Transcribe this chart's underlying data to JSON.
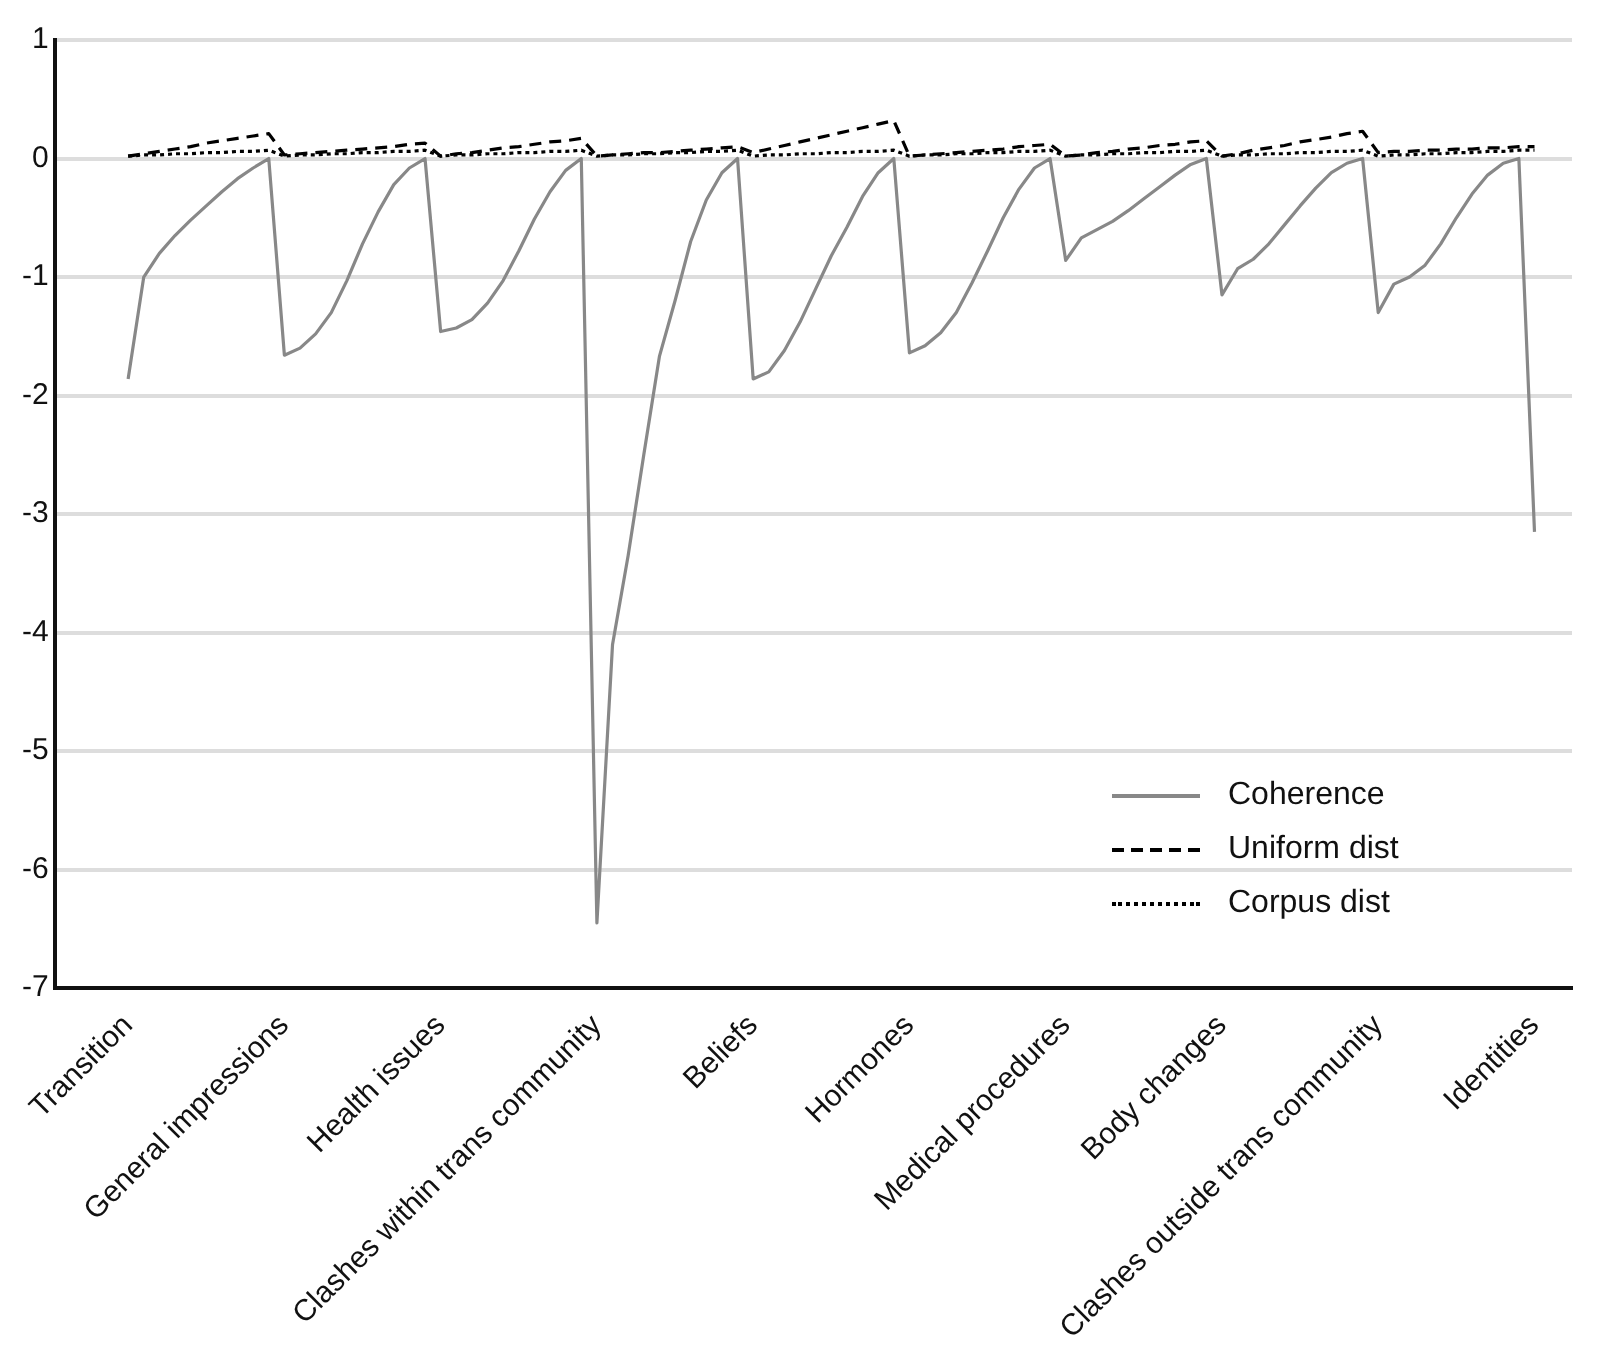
{
  "chart_data": {
    "type": "line",
    "categories": [
      "Transition",
      null,
      null,
      null,
      null,
      null,
      null,
      null,
      null,
      null,
      "General impressions",
      null,
      null,
      null,
      null,
      null,
      null,
      null,
      null,
      null,
      "Health issues",
      null,
      null,
      null,
      null,
      null,
      null,
      null,
      null,
      null,
      "Clashes within trans community",
      null,
      null,
      null,
      null,
      null,
      null,
      null,
      null,
      null,
      "Beliefs",
      null,
      null,
      null,
      null,
      null,
      null,
      null,
      null,
      null,
      "Hormones",
      null,
      null,
      null,
      null,
      null,
      null,
      null,
      null,
      null,
      "Medical procedures",
      null,
      null,
      null,
      null,
      null,
      null,
      null,
      null,
      null,
      "Body changes",
      null,
      null,
      null,
      null,
      null,
      null,
      null,
      null,
      null,
      "Clashes outside trans community",
      null,
      null,
      null,
      null,
      null,
      null,
      null,
      null,
      null,
      "Identities"
    ],
    "ylim": [
      -7,
      1
    ],
    "yticks": [
      -7,
      -6,
      -5,
      -4,
      -3,
      -2,
      -1,
      0,
      1
    ],
    "grid": "y",
    "legend": "bottom right",
    "marker": "none",
    "series": [
      {
        "name": "Coherence",
        "color": "#888888",
        "line_style": "solid",
        "values": [
          -1.86,
          -1.0,
          -0.8,
          -0.65,
          -0.52,
          -0.4,
          -0.28,
          -0.17,
          -0.08,
          0,
          -1.66,
          -1.6,
          -1.48,
          -1.3,
          -1.03,
          -0.72,
          -0.45,
          -0.22,
          -0.08,
          0,
          -1.46,
          -1.43,
          -1.36,
          -1.22,
          -1.03,
          -0.78,
          -0.51,
          -0.28,
          -0.1,
          0,
          -6.45,
          -4.1,
          -3.35,
          -2.5,
          -1.67,
          -1.2,
          -0.7,
          -0.35,
          -0.12,
          0,
          -1.86,
          -1.8,
          -1.62,
          -1.38,
          -1.1,
          -0.82,
          -0.58,
          -0.32,
          -0.12,
          0,
          -1.64,
          -1.58,
          -1.47,
          -1.3,
          -1.05,
          -0.78,
          -0.5,
          -0.26,
          -0.08,
          0,
          -0.86,
          -0.67,
          -0.6,
          -0.53,
          -0.44,
          -0.34,
          -0.24,
          -0.14,
          -0.05,
          0,
          -1.15,
          -0.93,
          -0.85,
          -0.72,
          -0.56,
          -0.4,
          -0.25,
          -0.12,
          -0.04,
          0,
          -1.3,
          -1.06,
          -1.0,
          -0.9,
          -0.72,
          -0.5,
          -0.3,
          -0.14,
          -0.04,
          0,
          -3.15
        ]
      },
      {
        "name": "Uniform dist",
        "color": "#000000",
        "line_style": "dashed",
        "values": [
          0.02,
          0.04,
          0.06,
          0.08,
          0.1,
          0.13,
          0.15,
          0.17,
          0.19,
          0.21,
          0.03,
          0.04,
          0.05,
          0.06,
          0.07,
          0.08,
          0.09,
          0.1,
          0.12,
          0.13,
          0.02,
          0.04,
          0.05,
          0.07,
          0.09,
          0.1,
          0.12,
          0.14,
          0.15,
          0.17,
          0.02,
          0.03,
          0.04,
          0.05,
          0.05,
          0.06,
          0.07,
          0.08,
          0.09,
          0.1,
          0.05,
          0.08,
          0.11,
          0.14,
          0.17,
          0.2,
          0.23,
          0.26,
          0.29,
          0.32,
          0.02,
          0.03,
          0.04,
          0.05,
          0.06,
          0.07,
          0.08,
          0.1,
          0.11,
          0.12,
          0.02,
          0.03,
          0.05,
          0.06,
          0.08,
          0.09,
          0.11,
          0.12,
          0.14,
          0.15,
          0.02,
          0.04,
          0.07,
          0.09,
          0.11,
          0.14,
          0.16,
          0.18,
          0.21,
          0.23,
          0.05,
          0.06,
          0.06,
          0.07,
          0.07,
          0.08,
          0.08,
          0.09,
          0.09,
          0.1,
          0.1
        ]
      },
      {
        "name": "Corpus dist",
        "color": "#000000",
        "line_style": "dotted",
        "values": [
          0.02,
          0.03,
          0.03,
          0.04,
          0.04,
          0.05,
          0.05,
          0.06,
          0.06,
          0.07,
          0.02,
          0.03,
          0.03,
          0.04,
          0.04,
          0.05,
          0.05,
          0.06,
          0.06,
          0.07,
          0.02,
          0.03,
          0.03,
          0.04,
          0.04,
          0.05,
          0.05,
          0.06,
          0.06,
          0.07,
          0.02,
          0.03,
          0.03,
          0.04,
          0.04,
          0.05,
          0.05,
          0.06,
          0.06,
          0.07,
          0.02,
          0.03,
          0.03,
          0.04,
          0.04,
          0.05,
          0.05,
          0.06,
          0.06,
          0.07,
          0.02,
          0.03,
          0.03,
          0.04,
          0.04,
          0.05,
          0.05,
          0.06,
          0.06,
          0.07,
          0.02,
          0.03,
          0.03,
          0.04,
          0.04,
          0.05,
          0.05,
          0.06,
          0.06,
          0.07,
          0.02,
          0.03,
          0.03,
          0.04,
          0.04,
          0.05,
          0.05,
          0.06,
          0.06,
          0.07,
          0.02,
          0.03,
          0.03,
          0.04,
          0.04,
          0.05,
          0.05,
          0.06,
          0.06,
          0.07,
          0.07
        ]
      }
    ]
  }
}
